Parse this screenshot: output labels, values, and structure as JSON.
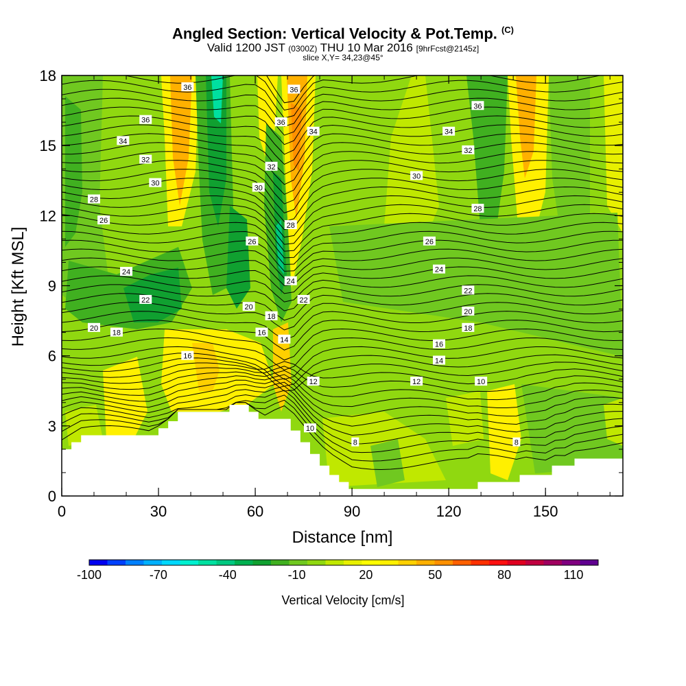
{
  "title": {
    "main": "Angled Section: Vertical Velocity & Pot.Temp.",
    "main_suffix": "(C)",
    "valid_prefix": "Valid 1200 JST",
    "valid_utc": "(0300Z)",
    "valid_date": "THU 10 Mar 2016",
    "valid_fcst": "[9hrFcst@2145z]",
    "slice": "slice X,Y= 34,23@45°"
  },
  "chart_data": {
    "type": "heatmap",
    "xlabel": "Distance [nm]",
    "ylabel": "Height [Kft MSL]",
    "xlim": [
      0,
      174
    ],
    "ylim": [
      0,
      18
    ],
    "x_ticks": [
      "0",
      "30",
      "60",
      "90",
      "120",
      "150"
    ],
    "x_tick_values": [
      0,
      30,
      60,
      90,
      120,
      150
    ],
    "y_ticks": [
      "0",
      "3",
      "6",
      "9",
      "12",
      "15",
      "18"
    ],
    "y_tick_values": [
      0,
      3,
      6,
      9,
      12,
      15,
      18
    ],
    "terrain_kft": [
      [
        0,
        2.0
      ],
      [
        3,
        2.0
      ],
      [
        3,
        2.3
      ],
      [
        6,
        2.3
      ],
      [
        6,
        2.6
      ],
      [
        30,
        2.6
      ],
      [
        30,
        2.9
      ],
      [
        33,
        2.9
      ],
      [
        33,
        3.2
      ],
      [
        36,
        3.2
      ],
      [
        36,
        3.6
      ],
      [
        52,
        3.6
      ],
      [
        52,
        3.9
      ],
      [
        58,
        3.9
      ],
      [
        58,
        3.6
      ],
      [
        61,
        3.6
      ],
      [
        61,
        3.3
      ],
      [
        71,
        3.3
      ],
      [
        71,
        2.8
      ],
      [
        74,
        2.8
      ],
      [
        74,
        2.3
      ],
      [
        77,
        2.3
      ],
      [
        77,
        1.8
      ],
      [
        80,
        1.8
      ],
      [
        80,
        1.3
      ],
      [
        83,
        1.3
      ],
      [
        83,
        0.9
      ],
      [
        86,
        0.9
      ],
      [
        86,
        0.6
      ],
      [
        89,
        0.6
      ],
      [
        89,
        0.3
      ],
      [
        129,
        0.3
      ],
      [
        129,
        0.6
      ],
      [
        142,
        0.6
      ],
      [
        142,
        0.9
      ],
      [
        152,
        0.9
      ],
      [
        152,
        1.3
      ],
      [
        159,
        1.3
      ],
      [
        159,
        1.6
      ],
      [
        174,
        1.6
      ]
    ],
    "pot_temp_labels": [
      {
        "text": "36",
        "x": 39,
        "y": 17.5
      },
      {
        "text": "36",
        "x": 72,
        "y": 17.4
      },
      {
        "text": "36",
        "x": 26,
        "y": 16.1
      },
      {
        "text": "36",
        "x": 68,
        "y": 16.0
      },
      {
        "text": "36",
        "x": 129,
        "y": 16.7
      },
      {
        "text": "34",
        "x": 78,
        "y": 15.6
      },
      {
        "text": "34",
        "x": 19,
        "y": 15.2
      },
      {
        "text": "34",
        "x": 120,
        "y": 15.6
      },
      {
        "text": "32",
        "x": 26,
        "y": 14.4
      },
      {
        "text": "32",
        "x": 65,
        "y": 14.1
      },
      {
        "text": "32",
        "x": 126,
        "y": 14.8
      },
      {
        "text": "30",
        "x": 29,
        "y": 13.4
      },
      {
        "text": "30",
        "x": 61,
        "y": 13.2
      },
      {
        "text": "30",
        "x": 110,
        "y": 13.7
      },
      {
        "text": "28",
        "x": 10,
        "y": 12.7
      },
      {
        "text": "28",
        "x": 71,
        "y": 11.6
      },
      {
        "text": "28",
        "x": 129,
        "y": 12.3
      },
      {
        "text": "26",
        "x": 13,
        "y": 11.8
      },
      {
        "text": "26",
        "x": 59,
        "y": 10.9
      },
      {
        "text": "26",
        "x": 114,
        "y": 10.9
      },
      {
        "text": "24",
        "x": 20,
        "y": 9.6
      },
      {
        "text": "24",
        "x": 71,
        "y": 9.2
      },
      {
        "text": "24",
        "x": 117,
        "y": 9.7
      },
      {
        "text": "22",
        "x": 26,
        "y": 8.4
      },
      {
        "text": "22",
        "x": 75,
        "y": 8.4
      },
      {
        "text": "22",
        "x": 126,
        "y": 8.8
      },
      {
        "text": "20",
        "x": 58,
        "y": 8.1
      },
      {
        "text": "20",
        "x": 126,
        "y": 7.9
      },
      {
        "text": "20",
        "x": 10,
        "y": 7.2
      },
      {
        "text": "18",
        "x": 65,
        "y": 7.7
      },
      {
        "text": "18",
        "x": 126,
        "y": 7.2
      },
      {
        "text": "18",
        "x": 17,
        "y": 7.0
      },
      {
        "text": "16",
        "x": 62,
        "y": 7.0
      },
      {
        "text": "16",
        "x": 117,
        "y": 6.5
      },
      {
        "text": "16",
        "x": 39,
        "y": 6.0
      },
      {
        "text": "14",
        "x": 69,
        "y": 6.7
      },
      {
        "text": "14",
        "x": 117,
        "y": 5.8
      },
      {
        "text": "12",
        "x": 78,
        "y": 4.9
      },
      {
        "text": "12",
        "x": 110,
        "y": 4.9
      },
      {
        "text": "10",
        "x": 130,
        "y": 4.9
      },
      {
        "text": "10",
        "x": 77,
        "y": 2.9
      },
      {
        "text": "8",
        "x": 91,
        "y": 2.3
      },
      {
        "text": "8",
        "x": 141,
        "y": 2.3
      }
    ]
  },
  "colorbar": {
    "title": "Vertical Velocity [cm/s]",
    "tick_labels": [
      "-100",
      "-70",
      "-40",
      "-10",
      "20",
      "50",
      "80",
      "110"
    ],
    "colors": [
      "#0000f0",
      "#0040ff",
      "#0080ff",
      "#00b0ff",
      "#00d8ff",
      "#00f0d0",
      "#00e0a0",
      "#00c880",
      "#00b050",
      "#10a030",
      "#40b020",
      "#70c820",
      "#90d810",
      "#c0e800",
      "#e8f000",
      "#ffff00",
      "#fff000",
      "#ffd000",
      "#ffb000",
      "#ff9000",
      "#ff6000",
      "#ff3000",
      "#ff1010",
      "#e00020",
      "#c00040",
      "#a00060",
      "#800080",
      "#600090"
    ]
  }
}
